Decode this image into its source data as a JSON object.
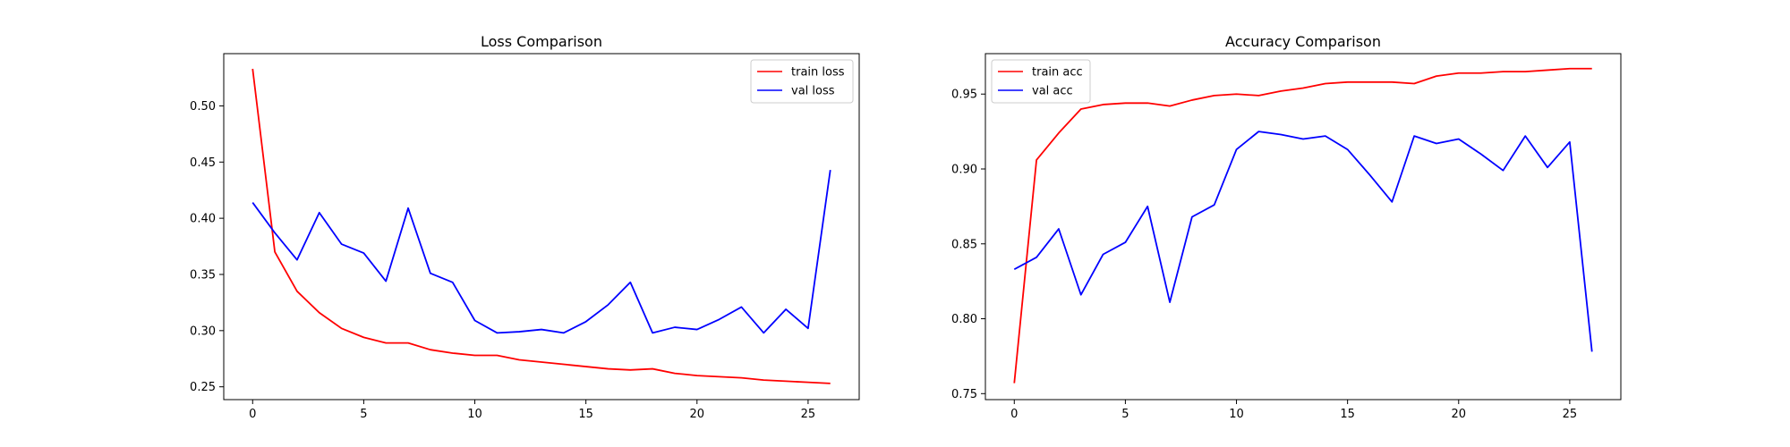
{
  "chart_data": [
    {
      "type": "line",
      "title": "Loss Comparison",
      "xlabel": "",
      "ylabel": "",
      "xlim": [
        -1.3,
        27.3
      ],
      "ylim": [
        0.2386,
        0.5465
      ],
      "xticks": [
        0,
        5,
        10,
        15,
        20,
        25
      ],
      "yticks": [
        0.25,
        0.3,
        0.35,
        0.4,
        0.45,
        0.5
      ],
      "ytick_labels": [
        "0.25",
        "0.30",
        "0.35",
        "0.40",
        "0.45",
        "0.50"
      ],
      "grid": false,
      "legend_position": "upper right",
      "x": [
        0,
        1,
        2,
        3,
        4,
        5,
        6,
        7,
        8,
        9,
        10,
        11,
        12,
        13,
        14,
        15,
        16,
        17,
        18,
        19,
        20,
        21,
        22,
        23,
        24,
        25,
        26
      ],
      "series": [
        {
          "name": "train loss",
          "color": "#ff0000",
          "values": [
            0.533,
            0.37,
            0.335,
            0.316,
            0.302,
            0.294,
            0.289,
            0.289,
            0.283,
            0.28,
            0.278,
            0.278,
            0.274,
            0.272,
            0.27,
            0.268,
            0.266,
            0.265,
            0.266,
            0.262,
            0.26,
            0.259,
            0.258,
            0.256,
            0.255,
            0.254,
            0.253
          ]
        },
        {
          "name": "val loss",
          "color": "#0000ff",
          "values": [
            0.414,
            0.387,
            0.363,
            0.405,
            0.377,
            0.369,
            0.344,
            0.409,
            0.351,
            0.343,
            0.309,
            0.298,
            0.299,
            0.301,
            0.298,
            0.308,
            0.323,
            0.343,
            0.298,
            0.303,
            0.301,
            0.31,
            0.321,
            0.298,
            0.319,
            0.302,
            0.443
          ]
        }
      ]
    },
    {
      "type": "line",
      "title": "Accuracy Comparison",
      "xlabel": "",
      "ylabel": "",
      "xlim": [
        -1.3,
        27.3
      ],
      "ylim": [
        0.746,
        0.977
      ],
      "xticks": [
        0,
        5,
        10,
        15,
        20,
        25
      ],
      "yticks": [
        0.75,
        0.8,
        0.85,
        0.9,
        0.95
      ],
      "ytick_labels": [
        "0.75",
        "0.80",
        "0.85",
        "0.90",
        "0.95"
      ],
      "grid": false,
      "legend_position": "upper left",
      "x": [
        0,
        1,
        2,
        3,
        4,
        5,
        6,
        7,
        8,
        9,
        10,
        11,
        12,
        13,
        14,
        15,
        16,
        17,
        18,
        19,
        20,
        21,
        22,
        23,
        24,
        25,
        26
      ],
      "series": [
        {
          "name": "train acc",
          "color": "#ff0000",
          "values": [
            0.757,
            0.906,
            0.924,
            0.94,
            0.943,
            0.944,
            0.944,
            0.942,
            0.946,
            0.949,
            0.95,
            0.949,
            0.952,
            0.954,
            0.957,
            0.958,
            0.958,
            0.958,
            0.957,
            0.962,
            0.964,
            0.964,
            0.965,
            0.965,
            0.966,
            0.967,
            0.967
          ]
        },
        {
          "name": "val acc",
          "color": "#0000ff",
          "values": [
            0.833,
            0.841,
            0.86,
            0.816,
            0.843,
            0.851,
            0.875,
            0.811,
            0.868,
            0.876,
            0.913,
            0.925,
            0.923,
            0.92,
            0.922,
            0.913,
            0.896,
            0.878,
            0.922,
            0.917,
            0.92,
            0.91,
            0.899,
            0.922,
            0.901,
            0.918,
            0.778
          ]
        }
      ]
    }
  ]
}
